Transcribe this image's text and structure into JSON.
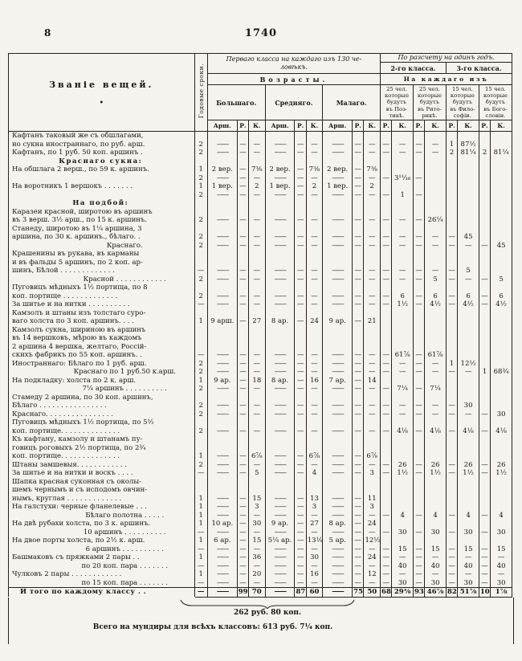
{
  "page": {
    "number": "8",
    "folio": "1740"
  },
  "table": {
    "items_header": "Званіе вещей.",
    "items_header_dot": "•",
    "srok_header": "Годовые сроки.",
    "first_class": {
      "title": "Перваго класса на каждаго изъ 130 че-\nловѣкъ.",
      "ages_title": "Возрасты.",
      "ages": [
        "Большаго.",
        "Средняго.",
        "Малаго."
      ],
      "units": [
        "Арш.",
        "Р.",
        "К."
      ]
    },
    "per_year": {
      "title": "По разсчету на одинъ годъ.",
      "classes": [
        "2-го класса.",
        "3-го класса."
      ],
      "each_title": "На каждаго изъ",
      "groups": [
        "25 чел.\nкоторые\nбудутъ\nвъ Поэ-\nтикѣ.",
        "25 чел.\nкоторые\nбудутъ\nвъ Рито-\nрикѣ.",
        "15 чел.\nкоторые\nбудутъ\nвъ Фило-\nсофіи.",
        "15 чел.\nкоторые\nбудутъ\nвъ Бого-\nсловіи."
      ],
      "units": [
        "Р.",
        "К."
      ]
    },
    "rows": [
      {
        "lines": [
          "Кафтанъ таковый же съ обшлагами,",
          "но сукна иностраннаго, по руб. арш."
        ],
        "cells": [
          "2",
          "——",
          "—",
          "—",
          "——",
          "—",
          "—",
          "——",
          "—",
          "—",
          "—",
          "—",
          "—",
          "—",
          "1",
          "87½",
          "",
          ""
        ]
      },
      {
        "lines": [
          "Кафтанъ, по 1 руб. 50 коп. аршинъ ."
        ],
        "cells": [
          "2",
          "——",
          "—",
          "—",
          "——",
          "—",
          "—",
          "——",
          "—",
          "—",
          "—",
          "—",
          "—",
          "—",
          "2",
          "81¼",
          "2",
          "81¼"
        ]
      },
      {
        "section": true,
        "lines": [
          "Краснаго сукна:"
        ]
      },
      {
        "lines": [
          "На обшлага 2 верш., по 59 к. аршинъ."
        ],
        "cells": [
          "1",
          "2 вер.",
          "—",
          "7⅜",
          "2 вер.",
          "—",
          "7⅜",
          "2 вер.",
          "—",
          "7⅜",
          "",
          "",
          "",
          "",
          "",
          "",
          "",
          ""
        ]
      },
      {
        "lines": [
          ""
        ],
        "cells": [
          "2",
          "——",
          "—",
          "—",
          "——",
          "—",
          "—",
          "——",
          "—",
          "—",
          "—",
          "3¹¹⁄₁₆",
          "—",
          "",
          "",
          "",
          "",
          ""
        ]
      },
      {
        "lines": [
          "На воротникъ 1 вершокъ . . . . . . ."
        ],
        "cells": [
          "1",
          "1 вер.",
          "—",
          "2",
          "1 вер.",
          "—",
          "2",
          "1 вер.",
          "—",
          "2",
          "",
          "",
          "",
          "",
          "",
          "",
          "",
          ""
        ]
      },
      {
        "lines": [
          ""
        ],
        "cells": [
          "2",
          "——",
          "—",
          "—",
          "——",
          "—",
          "—",
          "——",
          "—",
          "—",
          "—",
          "1",
          "—",
          "",
          "",
          "",
          "",
          ""
        ]
      },
      {
        "section": true,
        "lines": [
          "На подбой:"
        ]
      },
      {
        "lines": [
          "Каразеи красной, широтою въ аршинъ",
          "въ 3 верш. 3½ арш., по 15 к. аршинъ."
        ],
        "cells": [
          "2",
          "——",
          "—",
          "—",
          "——",
          "—",
          "—",
          "——",
          "—",
          "—",
          "—",
          "—",
          "—",
          "26¼",
          "",
          "",
          "",
          ""
        ]
      },
      {
        "lines": [
          "Станеду, широтою въ 1¼ аршина, 3",
          "аршина, по 30 к. аршинъ., бѣлаго. ."
        ],
        "cells": [
          "2",
          "——",
          "—",
          "—",
          "——",
          "—",
          "—",
          "——",
          "—",
          "—",
          "—",
          "—",
          "—",
          "—",
          "—",
          "45",
          "",
          ""
        ]
      },
      {
        "indent": true,
        "lines": [
          "Краснаго."
        ],
        "cells": [
          "2",
          "——",
          "—",
          "—",
          "——",
          "—",
          "—",
          "——",
          "—",
          "—",
          "—",
          "—",
          "—",
          "—",
          "—",
          "—",
          "—",
          "45"
        ]
      },
      {
        "lines": [
          "Крашенины въ рукава, въ карманы",
          "и въ фальды 5 аршинъ, по 2 коп. ар-",
          "шинъ, Бѣлой . . . . . . . . . . . . ."
        ],
        "cells": [
          "—",
          "——",
          "—",
          "—",
          "——",
          "—",
          "—",
          "——",
          "—",
          "—",
          "—",
          "—",
          "—",
          "—",
          "—",
          "5",
          "",
          ""
        ]
      },
      {
        "indent": true,
        "lines": [
          "Красной . . . . . . . . . . . ."
        ],
        "cells": [
          "2",
          "——",
          "—",
          "—",
          "——",
          "—",
          "—",
          "——",
          "—",
          "—",
          "—",
          "—",
          "—",
          "5",
          "—",
          "—",
          "—",
          "5"
        ]
      },
      {
        "lines": [
          "Пуговицъ мѣдныхъ 1½ портища, по 8",
          "коп. портище . . . . . . . . . . . . ."
        ],
        "cells": [
          "2",
          "——",
          "—",
          "—",
          "——",
          "—",
          "—",
          "——",
          "—",
          "—",
          "—",
          "6",
          "—",
          "6",
          "—",
          "6",
          "—",
          "6"
        ]
      },
      {
        "lines": [
          "За шитье и на нитки . . . . . . . . . ."
        ],
        "cells": [
          "—",
          "——",
          "—",
          "—",
          "——",
          "—",
          "—",
          "——",
          "—",
          "—",
          "—",
          "1½",
          "—",
          "4½",
          "—",
          "4½",
          "—",
          "4½"
        ]
      },
      {
        "lines": [
          "Камзолъ и штаны изъ толстаго суро-",
          "ваго холста по 3 коп. аршинъ. . . ."
        ],
        "cells": [
          "1",
          "9 арш.",
          "—",
          "27",
          "8 ар.",
          "—",
          "24",
          "9 ар.",
          "—",
          "21",
          "",
          "",
          "",
          "",
          "",
          "",
          "",
          ""
        ]
      },
      {
        "lines": [
          "Камзолъ сукна, шириною въ аршинъ",
          "въ 14 вершковъ, мѣрою въ каждомъ",
          "2 аршина 4 вершка, желтаго, Россій-",
          "скихъ фабрикъ по 55 коп. аршинъ. ."
        ],
        "cells": [
          "—",
          "——",
          "—",
          "—",
          "——",
          "—",
          "—",
          "——",
          "—",
          "—",
          "—",
          "61⅞",
          "—",
          "61⅞",
          "",
          "",
          "",
          ""
        ]
      },
      {
        "lines": [
          "Иностраннаго: Бѣлаго по 1 руб. арш."
        ],
        "cells": [
          "2",
          "——",
          "—",
          "—",
          "——",
          "—",
          "—",
          "——",
          "—",
          "—",
          "—",
          "—",
          "—",
          "—",
          "1",
          "12½",
          "",
          ""
        ]
      },
      {
        "indent": true,
        "lines": [
          "Краснаго по 1 руб.50 к.арш."
        ],
        "cells": [
          "2",
          "——",
          "—",
          "—",
          "——",
          "—",
          "—",
          "——",
          "—",
          "—",
          "—",
          "—",
          "—",
          "—",
          "—",
          "—",
          "1",
          "68¾"
        ]
      },
      {
        "lines": [
          "На подкладку: холста по 2 к. арш."
        ],
        "cells": [
          "1",
          "9 ар.",
          "—",
          "18",
          "8 ар.",
          "—",
          "16",
          "7 ар.",
          "—",
          "14",
          "",
          "",
          "",
          "",
          "",
          "",
          "",
          ""
        ]
      },
      {
        "indent": true,
        "lines": [
          "7¼ аршинъ . . . . . . . . . ."
        ],
        "cells": [
          "2",
          "——",
          "—",
          "—",
          "——",
          "—",
          "—",
          "——",
          "—",
          "—",
          "—",
          "7¼",
          "—",
          "7¼",
          "",
          "",
          "",
          ""
        ]
      },
      {
        "lines": [
          "Стамеду 2 аршина, по 30 коп. аршинъ,",
          "Бѣлаго . . . . . . . . . . . . . . . ."
        ],
        "cells": [
          "2",
          "——",
          "—",
          "—",
          "——",
          "—",
          "—",
          "——",
          "—",
          "—",
          "—",
          "—",
          "—",
          "—",
          "—",
          "30",
          "",
          ""
        ]
      },
      {
        "lines": [
          "Краснаго. . . . . . . . . . . . . . . ."
        ],
        "cells": [
          "2",
          "——",
          "—",
          "—",
          "——",
          "—",
          "—",
          "——",
          "—",
          "—",
          "—",
          "—",
          "—",
          "—",
          "—",
          "—",
          "—",
          "30"
        ]
      },
      {
        "lines": [
          "Пуговицъ мѣдныхъ 1½ портища, по 5½",
          "коп. портище. . . . . . . . . . . . . ."
        ],
        "cells": [
          "2",
          "——",
          "—",
          "—",
          "——",
          "—",
          "—",
          "——",
          "—",
          "—",
          "—",
          "4⅛",
          "—",
          "4⅛",
          "—",
          "4⅛",
          "—",
          "4⅛"
        ]
      },
      {
        "lines": [
          "Къ кафтану, камзолу и штанамъ пу-",
          "говицъ роговыхъ 2½ портища, по 2¾",
          "коп. портище. . . . . . . . . . . . . ."
        ],
        "cells": [
          "1",
          "——",
          "—",
          "6⅞",
          "——",
          "—",
          "6⅞",
          "——",
          "—",
          "6⅞",
          "",
          "",
          "",
          "",
          "",
          "",
          "",
          ""
        ]
      },
      {
        "lines": [
          "Штаны замшевыя. . . . . . . . . . . ."
        ],
        "cells": [
          "2",
          "——",
          "—",
          "—",
          "——",
          "—",
          "—",
          "——",
          "—",
          "—",
          "—",
          "26",
          "—",
          "26",
          "—",
          "26",
          "—",
          "26"
        ]
      },
      {
        "lines": [
          "За шитье и на нитки и воскъ . . . ."
        ],
        "cells": [
          "—",
          "——",
          "—",
          "5",
          "——",
          "—",
          "4",
          "——",
          "—",
          "3",
          "—",
          "1½",
          "—",
          "1½",
          "—",
          "1½",
          "—",
          "1½"
        ]
      },
      {
        "lines": [
          "Шапка красная суконная съ околы-",
          "шемъ чернымъ и съ исподомъ овчин-",
          "нымъ, круглая . . . . . . . . . . . . ."
        ],
        "cells": [
          "1",
          "——",
          "—",
          "15",
          "——",
          "—",
          "13",
          "——",
          "—",
          "11",
          "",
          "",
          "",
          "",
          "",
          "",
          "",
          ""
        ]
      },
      {
        "lines": [
          "На галстухи: черные фланелевые . . ."
        ],
        "cells": [
          "1",
          "——",
          "—",
          "3",
          "——",
          "—",
          "3",
          "——",
          "—",
          "3",
          "",
          "",
          "",
          "",
          "",
          "",
          "",
          ""
        ]
      },
      {
        "indent": true,
        "lines": [
          "Бѣлаго полотна . . . . ."
        ],
        "cells": [
          "1",
          "——",
          "—",
          "—",
          "——",
          "—",
          "—",
          "——",
          "—",
          "—",
          "—",
          "4",
          "—",
          "4",
          "—",
          "4",
          "—",
          "4"
        ]
      },
      {
        "lines": [
          "На двѣ рубахи холста, по 3 к. аршинъ."
        ],
        "cells": [
          "1",
          "10 ар.",
          "—",
          "30",
          "9 ар.",
          "—",
          "27",
          "8 ар.",
          "—",
          "24",
          "",
          "",
          "",
          "",
          "",
          "",
          "",
          ""
        ]
      },
      {
        "indent": true,
        "lines": [
          "10 аршинъ . . . . . . . . . ."
        ],
        "cells": [
          "—",
          "——",
          "—",
          "—",
          "——",
          "—",
          "—",
          "——",
          "—",
          "—",
          "—",
          "30",
          "—",
          "30",
          "—",
          "30",
          "—",
          "30"
        ]
      },
      {
        "lines": [
          "На двое порты холста, по 2½ к. арш."
        ],
        "cells": [
          "1",
          "6 ар.",
          "—",
          "15",
          "5¼ ар.",
          "—",
          "13⅛",
          "5 ар.",
          "—",
          "12½",
          "",
          "",
          "",
          "",
          "",
          "",
          "",
          ""
        ]
      },
      {
        "indent": true,
        "lines": [
          "6 аршинъ . . . . . . . . . ."
        ],
        "cells": [
          "—",
          "——",
          "—",
          "—",
          "——",
          "—",
          "—",
          "——",
          "—",
          "—",
          "—",
          "15",
          "—",
          "15",
          "—",
          "15",
          "—",
          "15"
        ]
      },
      {
        "lines": [
          "Башмаковъ съ пряжками 2 пары . ."
        ],
        "cells": [
          "1",
          "——",
          "—",
          "36",
          "——",
          "—",
          "30",
          "——",
          "—",
          "24",
          "—",
          "—",
          "—",
          "—",
          "—",
          "—",
          "—",
          "—"
        ]
      },
      {
        "indent": true,
        "lines": [
          "по 20 коп. пара . . . . . . ."
        ],
        "cells": [
          "—",
          "——",
          "—",
          "—",
          "——",
          "—",
          "—",
          "——",
          "—",
          "—",
          "—",
          "40",
          "—",
          "40",
          "—",
          "40",
          "—",
          "40"
        ]
      },
      {
        "lines": [
          "Чулковъ 2 пары . . . . . . . . . . . ."
        ],
        "cells": [
          "1",
          "——",
          "—",
          "20",
          "——",
          "—",
          "16",
          "——",
          "—",
          "12",
          "—",
          "—",
          "—",
          "—",
          "—",
          "—",
          "—",
          "—"
        ]
      },
      {
        "indent": true,
        "lines": [
          "по 15 коп. пара . . . . . . ."
        ],
        "cells": [
          "—",
          "——",
          "—",
          "—",
          "——",
          "—",
          "—",
          "——",
          "—",
          "—",
          "—",
          "30",
          "—",
          "30",
          "—",
          "30",
          "—",
          "30"
        ]
      }
    ],
    "total_row": {
      "label": "И того по каждому классу . .",
      "cells": [
        "—",
        "——",
        "99",
        "70",
        "——",
        "87",
        "60",
        "——",
        "75",
        "50",
        "68",
        "29⅜",
        "93",
        "46⅞",
        "82",
        "51⅞",
        "105",
        "1⅞"
      ]
    },
    "subtotal": "262 руб. 80 коп.",
    "grand_total": "Всего на мундиры для всѣхъ классовъ: 613 руб. 7¼ коп."
  }
}
